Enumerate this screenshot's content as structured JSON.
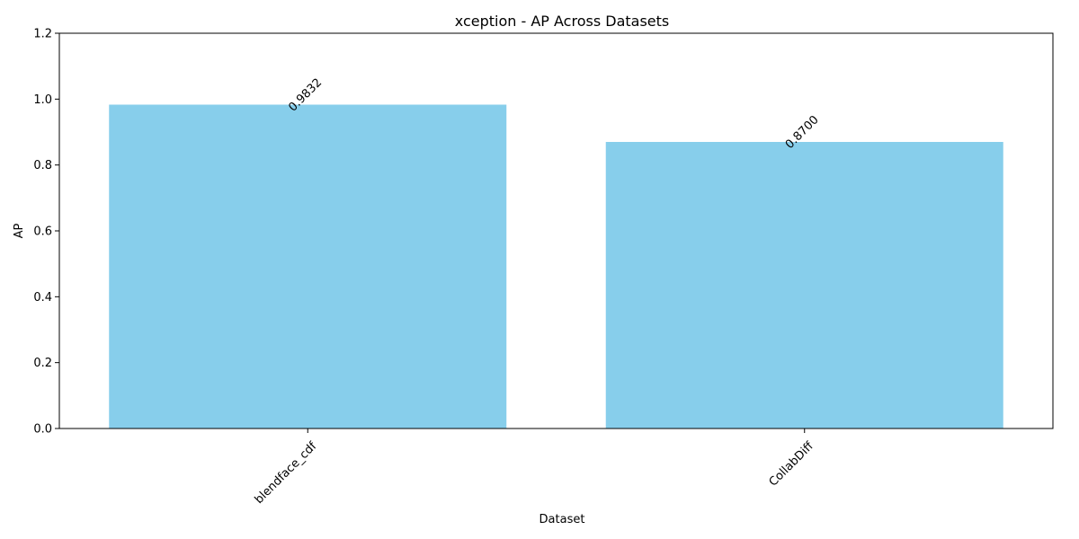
{
  "chart_data": {
    "type": "bar",
    "title": "xception - AP Across Datasets",
    "xlabel": "Dataset",
    "ylabel": "AP",
    "categories": [
      "blendface_cdf",
      "CollabDiff"
    ],
    "values": [
      0.9832,
      0.87
    ],
    "value_labels": [
      "0.9832",
      "0.8700"
    ],
    "ylim": [
      0,
      1.2
    ],
    "yticks": [
      0.0,
      0.2,
      0.4,
      0.6,
      0.8,
      1.0,
      1.2
    ],
    "ytick_labels": [
      "0.0",
      "0.2",
      "0.4",
      "0.6",
      "0.8",
      "1.0",
      "1.2"
    ],
    "bar_color": "#87ceeb",
    "grid": false,
    "legend": false
  }
}
